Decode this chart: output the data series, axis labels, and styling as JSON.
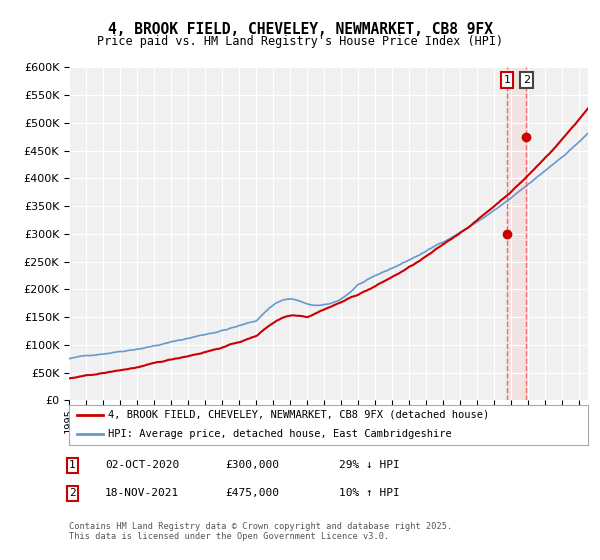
{
  "title": "4, BROOK FIELD, CHEVELEY, NEWMARKET, CB8 9FX",
  "subtitle": "Price paid vs. HM Land Registry's House Price Index (HPI)",
  "legend_line1": "4, BROOK FIELD, CHEVELEY, NEWMARKET, CB8 9FX (detached house)",
  "legend_line2": "HPI: Average price, detached house, East Cambridgeshire",
  "annotation1_date": "02-OCT-2020",
  "annotation1_price": "£300,000",
  "annotation1_hpi": "29% ↓ HPI",
  "annotation2_date": "18-NOV-2021",
  "annotation2_price": "£475,000",
  "annotation2_hpi": "10% ↑ HPI",
  "footer": "Contains HM Land Registry data © Crown copyright and database right 2025.\nThis data is licensed under the Open Government Licence v3.0.",
  "ylim": [
    0,
    600000
  ],
  "yticks": [
    0,
    50000,
    100000,
    150000,
    200000,
    250000,
    300000,
    350000,
    400000,
    450000,
    500000,
    550000,
    600000
  ],
  "red_color": "#cc0000",
  "blue_color": "#6699cc",
  "vline_color": "#ff6666",
  "background_color": "#f0f0f0",
  "sale1_x": 2020.75,
  "sale1_y": 300000,
  "sale2_x": 2021.88,
  "sale2_y": 475000,
  "xmin": 1995,
  "xmax": 2025.5
}
